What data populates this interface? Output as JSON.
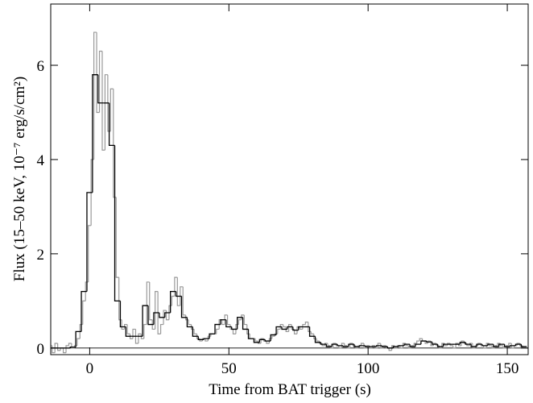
{
  "chart_data": {
    "type": "step",
    "x_label": "Time from BAT trigger (s)",
    "y_label": "Flux (15–50 keV, 10⁻⁷ erg/s/cm²)",
    "xlim": [
      -14,
      157.5
    ],
    "ylim": [
      -0.14,
      7.3
    ],
    "xticks": [
      0,
      50,
      100,
      150
    ],
    "yticks": [
      0,
      2,
      4,
      6
    ],
    "zero_line": 0,
    "mirror_ticks": true,
    "series": [
      {
        "color": "#999999",
        "step": 1,
        "x": [
          -14,
          -13,
          -12,
          -11,
          -10,
          -9,
          -8,
          -7,
          -6,
          -5,
          -4,
          -3,
          -2,
          -1,
          0,
          1,
          2,
          3,
          4,
          5,
          6,
          7,
          8,
          9,
          10,
          11,
          12,
          13,
          14,
          15,
          16,
          17,
          18,
          19,
          20,
          21,
          22,
          23,
          24,
          25,
          26,
          27,
          28,
          29,
          30,
          31,
          32,
          33,
          34,
          35,
          36,
          37,
          38,
          39,
          40,
          41,
          42,
          43,
          44,
          45,
          46,
          47,
          48,
          49,
          50,
          51,
          52,
          53,
          54,
          55,
          56,
          57,
          58,
          59,
          60,
          61,
          62,
          63,
          64,
          65,
          66,
          67,
          68,
          69,
          70,
          71,
          72,
          73,
          74,
          75,
          76,
          77,
          78,
          79,
          80,
          81,
          82,
          83,
          84,
          85,
          86,
          87,
          88,
          89,
          90,
          91,
          92,
          93,
          94,
          95,
          96,
          97,
          98,
          99,
          100,
          101,
          102,
          103,
          104,
          105,
          106,
          107,
          108,
          109,
          110,
          111,
          112,
          113,
          114,
          115,
          116,
          117,
          118,
          119,
          120,
          121,
          122,
          123,
          124,
          125,
          126,
          127,
          128,
          129,
          130,
          131,
          132,
          133,
          134,
          135,
          136,
          137,
          138,
          139,
          140,
          141,
          142,
          143,
          144,
          145,
          146,
          147,
          148,
          149,
          150,
          151,
          152,
          153,
          154,
          155,
          156
        ],
        "values": [
          0.05,
          -0.1,
          0.1,
          -0.05,
          0.0,
          -0.1,
          0.05,
          0.1,
          0.0,
          0.05,
          0.2,
          0.5,
          1.0,
          1.4,
          2.6,
          4.0,
          6.7,
          5.0,
          6.3,
          4.2,
          5.8,
          4.6,
          5.5,
          3.2,
          1.5,
          0.6,
          0.4,
          0.5,
          0.3,
          0.2,
          0.4,
          0.1,
          0.3,
          0.2,
          0.5,
          1.4,
          0.6,
          0.4,
          1.2,
          0.3,
          0.5,
          0.8,
          0.6,
          0.9,
          1.1,
          1.5,
          0.9,
          1.3,
          0.7,
          0.6,
          0.5,
          0.4,
          0.3,
          0.2,
          0.15,
          0.2,
          0.15,
          0.25,
          0.3,
          0.3,
          0.4,
          0.6,
          0.5,
          0.7,
          0.5,
          0.4,
          0.3,
          0.5,
          0.6,
          0.7,
          0.5,
          0.3,
          0.2,
          0.2,
          0.15,
          0.1,
          0.2,
          0.15,
          0.1,
          0.2,
          0.25,
          0.3,
          0.4,
          0.5,
          0.45,
          0.35,
          0.5,
          0.4,
          0.3,
          0.45,
          0.4,
          0.5,
          0.55,
          0.35,
          0.3,
          0.2,
          0.15,
          0.1,
          0.05,
          0.1,
          0.05,
          0.0,
          0.1,
          0.05,
          0.0,
          0.1,
          0.05,
          0.0,
          0.1,
          0.05,
          0.0,
          0.05,
          0.1,
          0.0,
          0.05,
          0.0,
          0.05,
          0.0,
          0.1,
          0.0,
          0.05,
          0.0,
          -0.05,
          0.05,
          0.0,
          0.05,
          0.0,
          0.1,
          0.05,
          0.0,
          0.05,
          0.1,
          0.15,
          0.2,
          0.15,
          0.1,
          0.15,
          0.05,
          0.1,
          0.05,
          0.0,
          0.1,
          0.05,
          0.1,
          0.05,
          0.0,
          0.1,
          0.05,
          0.15,
          0.1,
          0.05,
          0.1,
          0.0,
          0.05,
          0.1,
          0.05,
          0.0,
          0.1,
          0.05,
          0.0,
          0.05,
          0.1,
          0.05,
          0.0,
          0.05,
          0.1,
          0.0,
          0.05,
          0.1,
          0.05,
          0.0
        ]
      },
      {
        "color": "#000000",
        "step": 2,
        "x": [
          -14,
          -12,
          -10,
          -8,
          -6,
          -4,
          -2,
          0,
          2,
          4,
          6,
          8,
          10,
          12,
          14,
          16,
          18,
          20,
          22,
          24,
          26,
          28,
          30,
          32,
          34,
          36,
          38,
          40,
          42,
          44,
          46,
          48,
          50,
          52,
          54,
          56,
          58,
          60,
          62,
          64,
          66,
          68,
          70,
          72,
          74,
          76,
          78,
          80,
          82,
          84,
          86,
          88,
          90,
          92,
          94,
          96,
          98,
          100,
          102,
          104,
          106,
          108,
          110,
          112,
          114,
          116,
          118,
          120,
          122,
          124,
          126,
          128,
          130,
          132,
          134,
          136,
          138,
          140,
          142,
          144,
          146,
          148,
          150,
          152,
          154,
          156
        ],
        "values": [
          0,
          0,
          0,
          0,
          0.02,
          0.35,
          1.2,
          3.3,
          5.8,
          5.2,
          5.2,
          4.3,
          1.0,
          0.45,
          0.25,
          0.25,
          0.25,
          0.9,
          0.5,
          0.75,
          0.65,
          0.75,
          1.2,
          1.1,
          0.65,
          0.45,
          0.25,
          0.18,
          0.2,
          0.3,
          0.5,
          0.6,
          0.45,
          0.4,
          0.65,
          0.4,
          0.2,
          0.12,
          0.18,
          0.15,
          0.28,
          0.45,
          0.4,
          0.45,
          0.38,
          0.45,
          0.45,
          0.25,
          0.12,
          0.08,
          0.03,
          0.08,
          0.05,
          0.03,
          0.08,
          0.03,
          0.05,
          0.03,
          0.03,
          0.05,
          0.03,
          0.0,
          0.03,
          0.05,
          0.08,
          0.03,
          0.08,
          0.15,
          0.13,
          0.08,
          0.03,
          0.08,
          0.08,
          0.08,
          0.12,
          0.08,
          0.03,
          0.08,
          0.05,
          0.08,
          0.03,
          0.08,
          0.03,
          0.05,
          0.08,
          0.03
        ]
      }
    ]
  }
}
